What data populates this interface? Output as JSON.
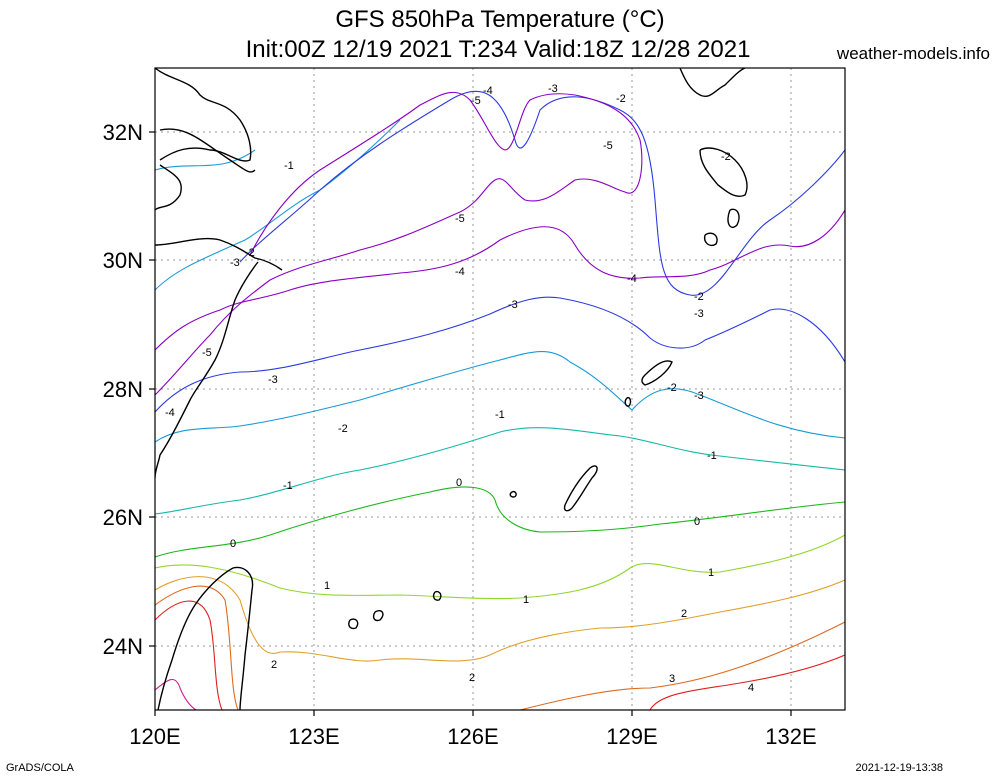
{
  "title": {
    "line1": "GFS 850hPa Temperature (°C)",
    "line2": "Init:00Z 12/19 2021 T:234 Valid:18Z 12/28 2021"
  },
  "site": "weather-models.info",
  "footer": {
    "left": "GrADS/COLA",
    "right": "2021-12-19-13:38"
  },
  "axes": {
    "lat_labels": [
      "32N",
      "30N",
      "28N",
      "26N",
      "24N"
    ],
    "lon_labels": [
      "120E",
      "123E",
      "126E",
      "129E",
      "132E"
    ]
  },
  "contour_labels": {
    "m5": "-5",
    "m4": "-4",
    "m3": "-3",
    "m2": "-2",
    "m1": "-1",
    "z": "0",
    "p1": "1",
    "p2": "2",
    "p3": "3",
    "p4": "4"
  },
  "colors": {
    "m5": "#8a00c6",
    "m4": "#8a00c6",
    "m3": "#2c3be0",
    "m2": "#1a9ad6",
    "m1": "#15b9a8",
    "z": "#1ab81a",
    "p1": "#93d62c",
    "p2": "#e0a02c",
    "p3": "#e06a1e",
    "p4": "#e0201e",
    "p5": "#d0208c"
  }
}
